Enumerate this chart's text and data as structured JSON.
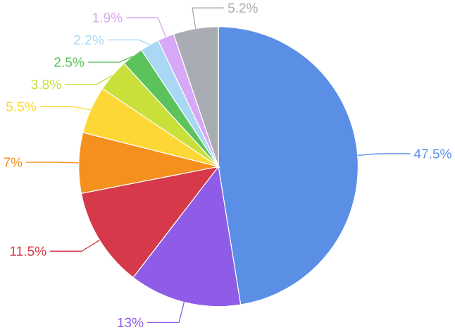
{
  "chart_data": {
    "type": "pie",
    "categories": [
      null,
      null,
      null,
      null,
      null,
      null,
      null,
      null,
      null,
      null
    ],
    "values": [
      47.5,
      13,
      11.5,
      7,
      5.5,
      3.8,
      2.5,
      2.2,
      1.9,
      5.2
    ],
    "colors": [
      "#5b8fe6",
      "#8e5ce6",
      "#d63a4a",
      "#f5901e",
      "#fdd735",
      "#c9e03a",
      "#5cc25c",
      "#a9d8f5",
      "#d7a8f5",
      "#a9adb3"
    ],
    "value_labels": [
      "47.5%",
      "13%",
      "11.5%",
      "7%",
      "5.5%",
      "3.8%",
      "2.5%",
      "2.2%",
      "1.9%",
      "5.2%"
    ]
  }
}
